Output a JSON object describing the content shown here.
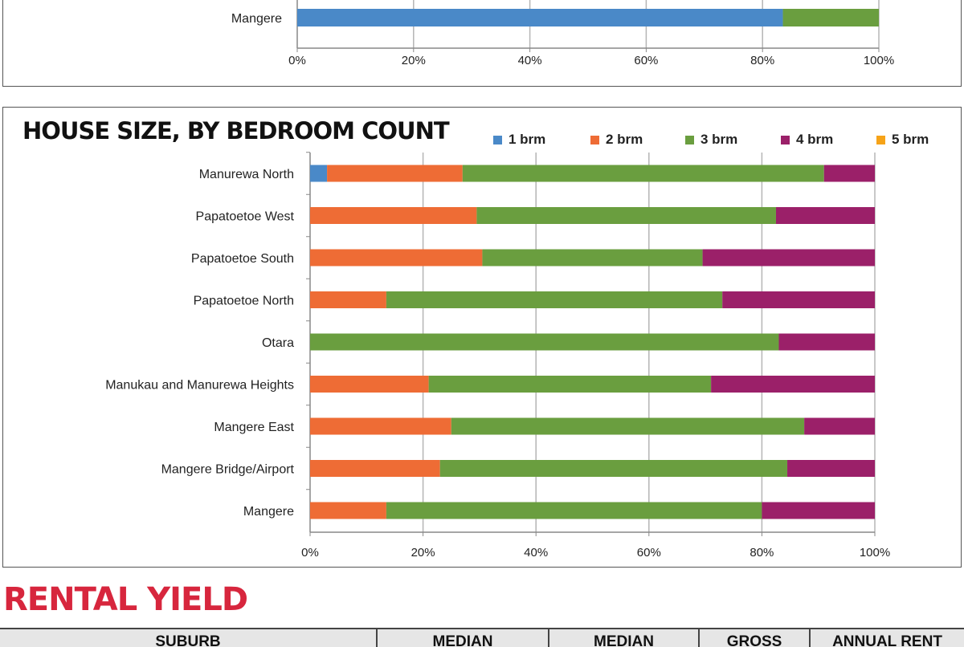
{
  "colors": {
    "brm1": "#4a89c8",
    "brm2": "#ee6c35",
    "brm3": "#6a9e3f",
    "brm4": "#9b2069",
    "brm5": "#f6a318",
    "accent_red": "#d7263d"
  },
  "chart_data": [
    {
      "type": "bar",
      "orientation": "horizontal",
      "stacked": "percent",
      "title": "",
      "categories": [
        "Mangere"
      ],
      "series": [
        {
          "values": [
            83.5
          ],
          "color": "#4a89c8"
        },
        {
          "values": [
            16.5
          ],
          "color": "#6a9e3f"
        }
      ],
      "xlim": [
        0,
        100
      ],
      "xticks": [
        "0%",
        "20%",
        "40%",
        "60%",
        "80%",
        "100%"
      ],
      "grid": true
    },
    {
      "type": "bar",
      "orientation": "horizontal",
      "stacked": "percent",
      "title": "HOUSE SIZE, BY BEDROOM COUNT",
      "legend_position": "top-right",
      "categories": [
        "Manurewa North",
        "Papatoetoe West",
        "Papatoetoe South",
        "Papatoetoe North",
        "Otara",
        "Manukau and Manurewa Heights",
        "Mangere East",
        "Mangere Bridge/Airport",
        "Mangere"
      ],
      "series": [
        {
          "name": "1 brm",
          "color": "#4a89c8",
          "values": [
            3,
            0,
            0,
            0,
            0,
            0,
            0,
            0,
            0
          ]
        },
        {
          "name": "2 brm",
          "color": "#ee6c35",
          "values": [
            24,
            29.5,
            30.5,
            13.5,
            0,
            21,
            25,
            23,
            13.5
          ]
        },
        {
          "name": "3 brm",
          "color": "#6a9e3f",
          "values": [
            64,
            53,
            39,
            59.5,
            83,
            50,
            62.5,
            61.5,
            66.5
          ]
        },
        {
          "name": "4 brm",
          "color": "#9b2069",
          "values": [
            9,
            17.5,
            30.5,
            27,
            17,
            29,
            12.5,
            15.5,
            20
          ]
        },
        {
          "name": "5 brm",
          "color": "#f6a318",
          "values": [
            0,
            0,
            0,
            0,
            0,
            0,
            0,
            0,
            0
          ]
        }
      ],
      "xlim": [
        0,
        100
      ],
      "xticks": [
        "0%",
        "20%",
        "40%",
        "60%",
        "80%",
        "100%"
      ],
      "grid": true
    }
  ],
  "chart_title": "HOUSE SIZE, BY BEDROOM COUNT",
  "section_title": "RENTAL YIELD",
  "table": {
    "headers": [
      "SUBURB",
      "MEDIAN",
      "MEDIAN",
      "GROSS",
      "ANNUAL RENT"
    ]
  }
}
